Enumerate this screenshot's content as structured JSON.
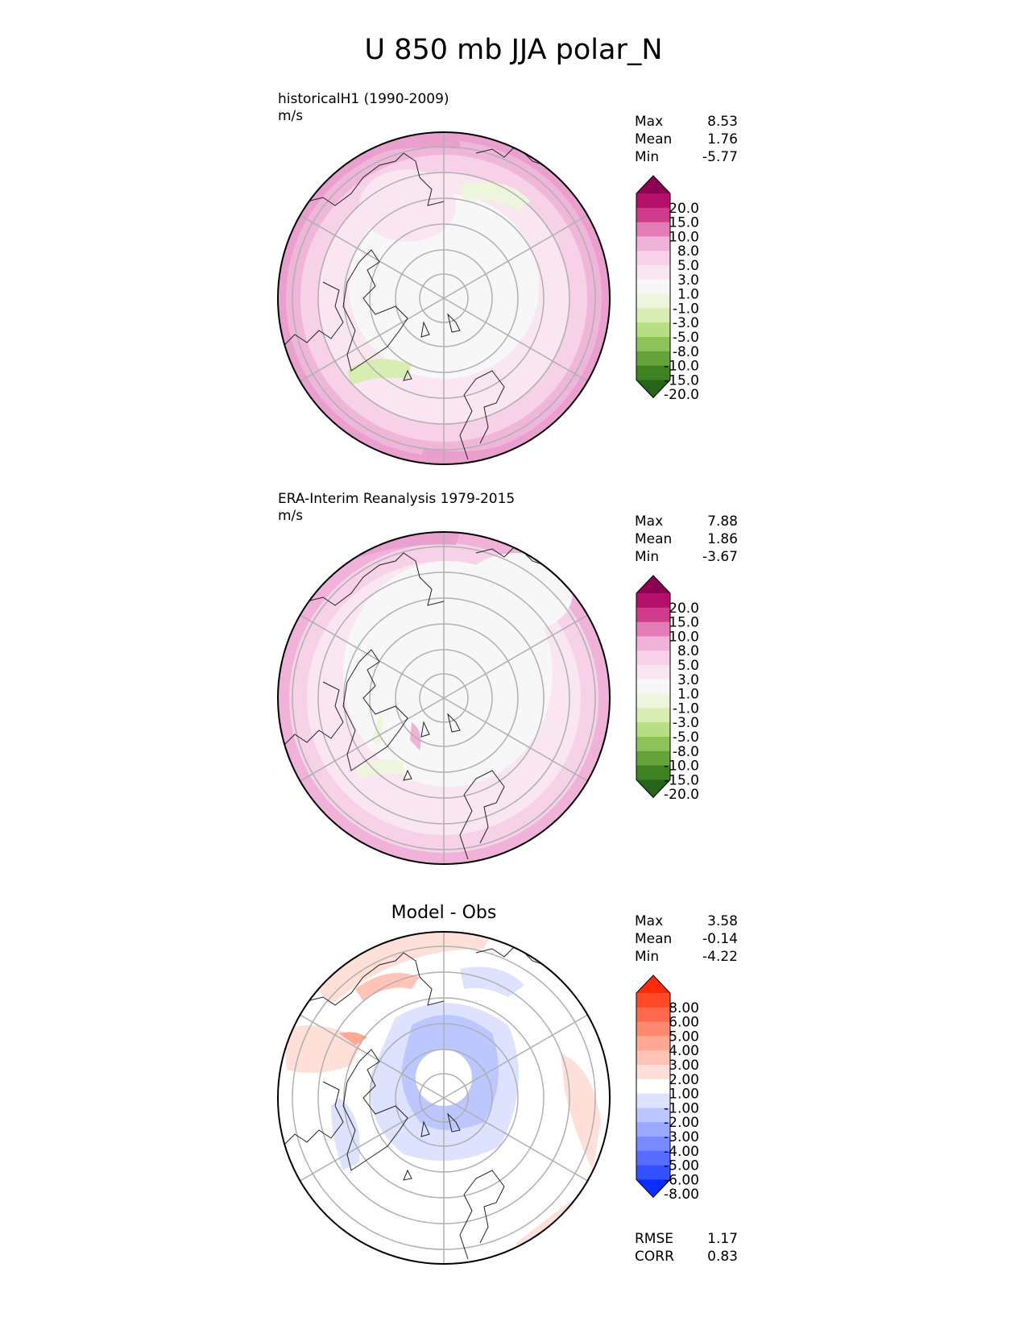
{
  "title": "U 850 mb JJA polar_N",
  "panels": [
    {
      "id": "model",
      "title_line1": "historicalH1 (1990-2009)",
      "title_line2": "m/s",
      "stats": [
        {
          "label": "Max",
          "value": "8.53"
        },
        {
          "label": "Mean",
          "value": "1.76"
        },
        {
          "label": "Min",
          "value": "-5.77"
        }
      ]
    },
    {
      "id": "obs",
      "title_line1": "ERA-Interim Reanalysis 1979-2015",
      "title_line2": "m/s",
      "stats": [
        {
          "label": "Max",
          "value": "7.88"
        },
        {
          "label": "Mean",
          "value": "1.86"
        },
        {
          "label": "Min",
          "value": "-3.67"
        }
      ]
    },
    {
      "id": "diff",
      "center_title": "Model - Obs",
      "stats": [
        {
          "label": "Max",
          "value": "3.58"
        },
        {
          "label": "Mean",
          "value": "-0.14"
        },
        {
          "label": "Min",
          "value": "-4.22"
        }
      ],
      "metrics": [
        {
          "label": "RMSE",
          "value": "1.17"
        },
        {
          "label": "CORR",
          "value": "0.83"
        }
      ]
    }
  ],
  "colorbars": {
    "field": {
      "labels": [
        "20.0",
        "15.0",
        "10.0",
        "8.0",
        "5.0",
        "3.0",
        "1.0",
        "-1.0",
        "-3.0",
        "-5.0",
        "-8.0",
        "-10.0",
        "-15.0",
        "-20.0"
      ],
      "colors": [
        "#8e0152",
        "#b4106a",
        "#cf3c8c",
        "#e27cb7",
        "#f0b2d9",
        "#f6d1e7",
        "#fae6f1",
        "#f7f7f7",
        "#edf6dc",
        "#d7edb3",
        "#b6de82",
        "#8cc45a",
        "#64a33a",
        "#3f8224",
        "#276419"
      ]
    },
    "diff": {
      "labels": [
        "8.00",
        "6.00",
        "5.00",
        "4.00",
        "3.00",
        "2.00",
        "1.00",
        "-1.00",
        "-2.00",
        "-3.00",
        "-4.00",
        "-5.00",
        "-6.00",
        "-8.00"
      ],
      "colors": [
        "#ff2a0a",
        "#ff4b2a",
        "#ff6a4c",
        "#ff8a70",
        "#ffa894",
        "#ffc4b6",
        "#ffe0d8",
        "#ffffff",
        "#dde2ff",
        "#bcc6ff",
        "#9aa8ff",
        "#788aff",
        "#566dff",
        "#3550ff",
        "#0a2cff"
      ]
    }
  },
  "colors": {
    "coastline": "#222222",
    "gridline": "#b0b0b0"
  }
}
